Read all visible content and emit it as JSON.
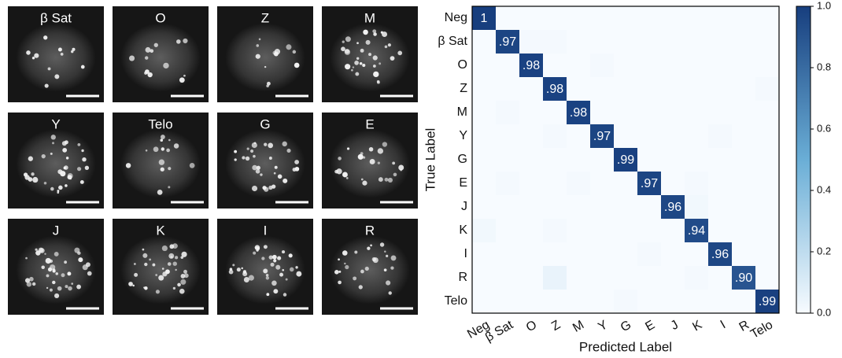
{
  "panels": [
    {
      "label": "β Sat"
    },
    {
      "label": "O"
    },
    {
      "label": "Z"
    },
    {
      "label": "M"
    },
    {
      "label": "Y"
    },
    {
      "label": "Telo"
    },
    {
      "label": "G"
    },
    {
      "label": "E"
    },
    {
      "label": "J"
    },
    {
      "label": "K"
    },
    {
      "label": "I"
    },
    {
      "label": "R"
    }
  ],
  "chart_data": {
    "type": "heatmap",
    "x_label": "Predicted Label",
    "y_label": "True Label",
    "categories": [
      "Neg",
      "β Sat",
      "O",
      "Z",
      "M",
      "Y",
      "G",
      "E",
      "J",
      "K",
      "I",
      "R",
      "Telo"
    ],
    "values": [
      [
        1,
        0,
        0,
        0,
        0,
        0,
        0,
        0,
        0,
        0,
        0,
        0,
        0
      ],
      [
        0,
        0.97,
        0.01,
        0.01,
        0,
        0,
        0,
        0,
        0,
        0,
        0,
        0,
        0
      ],
      [
        0,
        0,
        0.98,
        0,
        0,
        0.01,
        0,
        0,
        0,
        0,
        0,
        0,
        0
      ],
      [
        0,
        0,
        0,
        0.98,
        0,
        0,
        0,
        0,
        0,
        0,
        0,
        0,
        0.01
      ],
      [
        0,
        0.01,
        0,
        0,
        0.98,
        0,
        0,
        0,
        0,
        0,
        0,
        0,
        0
      ],
      [
        0,
        0,
        0,
        0.01,
        0,
        0.97,
        0,
        0,
        0,
        0,
        0.01,
        0,
        0
      ],
      [
        0,
        0,
        0,
        0,
        0,
        0,
        0.99,
        0,
        0,
        0,
        0,
        0,
        0
      ],
      [
        0,
        0.01,
        0,
        0,
        0.01,
        0,
        0,
        0.97,
        0,
        0.01,
        0,
        0,
        0
      ],
      [
        0,
        0,
        0,
        0,
        0,
        0,
        0,
        0,
        0.96,
        0.02,
        0,
        0,
        0
      ],
      [
        0.02,
        0,
        0,
        0.01,
        0,
        0,
        0,
        0,
        0,
        0.94,
        0,
        0,
        0
      ],
      [
        0,
        0,
        0,
        0,
        0,
        0,
        0,
        0.01,
        0,
        0,
        0.96,
        0,
        0
      ],
      [
        0,
        0,
        0,
        0.05,
        0,
        0,
        0,
        0,
        0,
        0.01,
        0,
        0.9,
        0
      ],
      [
        0,
        0,
        0,
        0,
        0,
        0,
        0.01,
        0,
        0,
        0,
        0,
        0,
        0.99
      ]
    ],
    "value_labels": [
      [
        "1",
        null,
        null,
        null,
        null,
        null,
        null,
        null,
        null,
        null,
        null,
        null,
        null
      ],
      [
        null,
        ".97",
        null,
        null,
        null,
        null,
        null,
        null,
        null,
        null,
        null,
        null,
        null
      ],
      [
        null,
        null,
        ".98",
        null,
        null,
        null,
        null,
        null,
        null,
        null,
        null,
        null,
        null
      ],
      [
        null,
        null,
        null,
        ".98",
        null,
        null,
        null,
        null,
        null,
        null,
        null,
        null,
        null
      ],
      [
        null,
        null,
        null,
        null,
        ".98",
        null,
        null,
        null,
        null,
        null,
        null,
        null,
        null
      ],
      [
        null,
        null,
        null,
        null,
        null,
        ".97",
        null,
        null,
        null,
        null,
        null,
        null,
        null
      ],
      [
        null,
        null,
        null,
        null,
        null,
        null,
        ".99",
        null,
        null,
        null,
        null,
        null,
        null
      ],
      [
        null,
        null,
        null,
        null,
        null,
        null,
        null,
        ".97",
        null,
        null,
        null,
        null,
        null
      ],
      [
        null,
        null,
        null,
        null,
        null,
        null,
        null,
        null,
        ".96",
        null,
        null,
        null,
        null
      ],
      [
        null,
        null,
        null,
        null,
        null,
        null,
        null,
        null,
        null,
        ".94",
        null,
        null,
        null
      ],
      [
        null,
        null,
        null,
        null,
        null,
        null,
        null,
        null,
        null,
        null,
        ".96",
        null,
        null
      ],
      [
        null,
        null,
        null,
        null,
        null,
        null,
        null,
        null,
        null,
        null,
        null,
        ".90",
        null
      ],
      [
        null,
        null,
        null,
        null,
        null,
        null,
        null,
        null,
        null,
        null,
        null,
        null,
        ".99"
      ]
    ],
    "colormap": [
      "#f7fbff",
      "#6aaed6",
      "#173e7e"
    ],
    "clim": [
      0,
      1
    ],
    "cticks": [
      {
        "value": 0,
        "label": "0.0"
      },
      0.2,
      0.4,
      0.6,
      0.8,
      {
        "value": 1,
        "label": "1.0"
      }
    ]
  }
}
